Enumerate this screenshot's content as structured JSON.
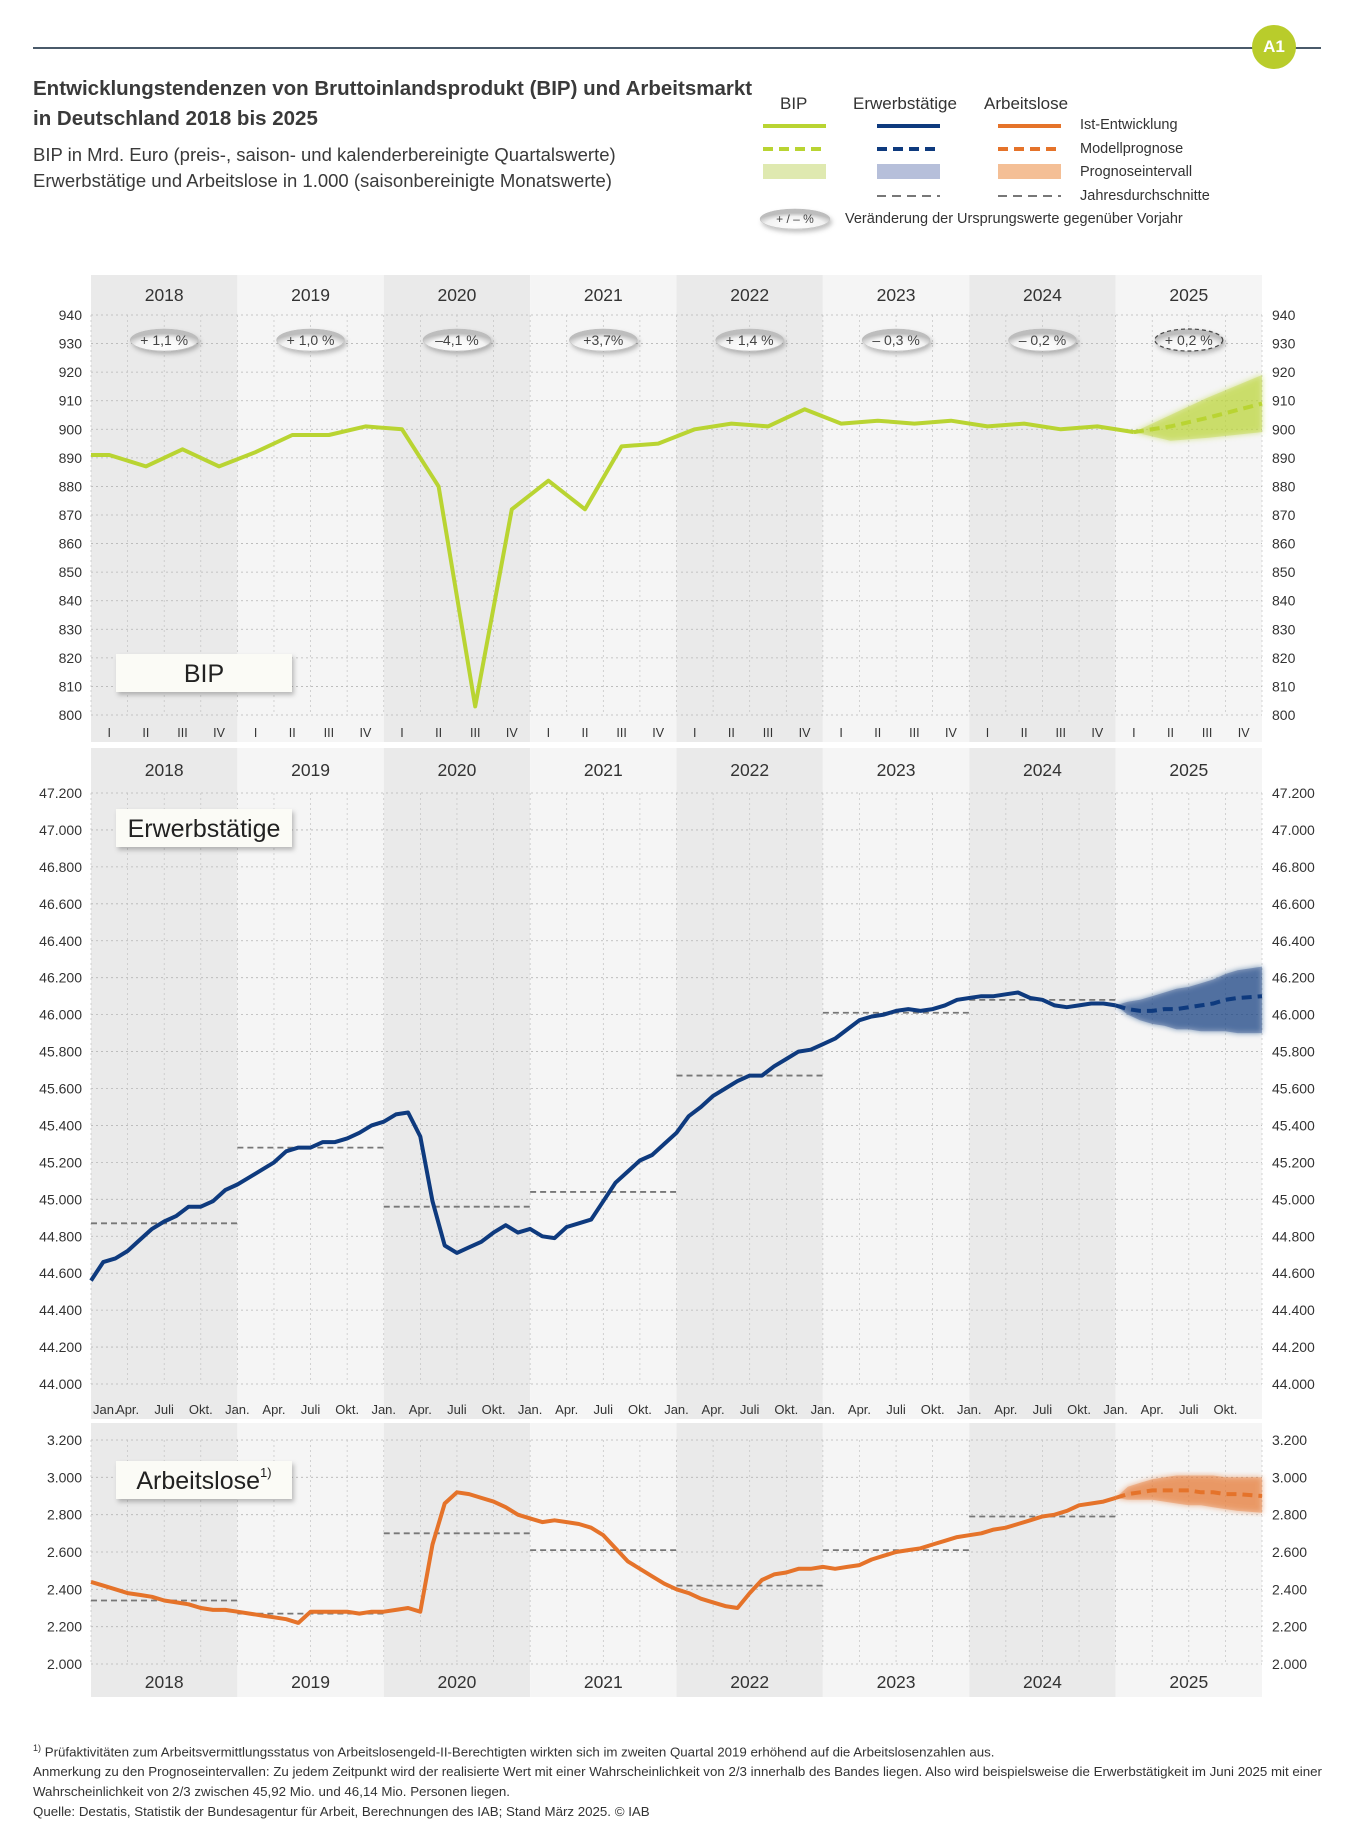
{
  "badge": "A1",
  "title": "Entwicklungstendenzen von Bruttoinlandsprodukt (BIP) und Arbeitsmarkt in Deutschland 2018 bis 2025",
  "subtitle_1": "BIP in Mrd. Euro (preis-, saison- und kalenderbereinigte Quartalswerte)",
  "subtitle_2": "Erwerbstätige und Arbeitslose in 1.000 (saisonbereinigte Monatswerte)",
  "legend": {
    "columns": [
      "BIP",
      "Erwerbstätige",
      "Arbeitslose"
    ],
    "rows": [
      "Ist-Entwicklung",
      "Modellprognose",
      "Prognoseintervall",
      "Jahresdurchschnitte"
    ],
    "change_symbol": "+ / – %",
    "change_text": "Veränderung der Ursprungswerte gegenüber Vorjahr"
  },
  "colors": {
    "bip": "#b9d432",
    "erw": "#0e3a7e",
    "alo": "#e5732a",
    "avg": "#777777",
    "band_dark": "#eaeaea",
    "band_light": "#f5f5f5"
  },
  "years": [
    "2018",
    "2019",
    "2020",
    "2021",
    "2022",
    "2023",
    "2024",
    "2025"
  ],
  "quarters": [
    "I",
    "II",
    "III",
    "IV"
  ],
  "months": [
    "Jan.",
    "Apr.",
    "Juli",
    "Okt."
  ],
  "chart_data": [
    {
      "type": "line",
      "label": "BIP",
      "unit": "Mrd. Euro",
      "ylim": [
        800,
        940
      ],
      "yticks": [
        800,
        810,
        820,
        830,
        840,
        850,
        860,
        870,
        880,
        890,
        900,
        910,
        920,
        930,
        940
      ],
      "yearly_change": [
        "+ 1,1 %",
        "+ 1,0 %",
        "–4,1 %",
        "+3,7%",
        "+ 1,4 %",
        "– 0,3 %",
        "– 0,2 %",
        "+ 0,2 %"
      ],
      "series": [
        {
          "name": "Ist-Entwicklung",
          "start": "2018-Q1",
          "values": [
            891,
            887,
            893,
            887,
            892,
            898,
            898,
            901,
            900,
            880,
            803,
            872,
            882,
            872,
            894,
            895,
            900,
            902,
            901,
            907,
            902,
            903,
            902,
            903,
            901,
            902,
            900,
            901,
            899
          ]
        },
        {
          "name": "Modellprognose",
          "start": "2025-Q1",
          "values": [
            899,
            901,
            904,
            909
          ]
        },
        {
          "name": "Prognoseintervall",
          "start": "2025-Q1",
          "lower": [
            899,
            896,
            897,
            899
          ],
          "upper": [
            899,
            905,
            911,
            919
          ]
        }
      ]
    },
    {
      "type": "line",
      "label": "Erwerbstätige",
      "unit": "1.000",
      "ylim": [
        44000,
        47200
      ],
      "yticks": [
        44000,
        44200,
        44400,
        44600,
        44800,
        45000,
        45200,
        45400,
        45600,
        45800,
        46000,
        46200,
        46400,
        46600,
        46800,
        47000,
        47200
      ],
      "annual_averages": [
        44870,
        45280,
        44960,
        45040,
        45670,
        46010,
        46080
      ],
      "series": [
        {
          "name": "Ist-Entwicklung",
          "start": "2018-01",
          "frequency": "monthly",
          "values": [
            44560,
            44660,
            44680,
            44720,
            44780,
            44840,
            44880,
            44910,
            44960,
            44960,
            44990,
            45050,
            45080,
            45120,
            45160,
            45200,
            45260,
            45280,
            45280,
            45310,
            45310,
            45330,
            45360,
            45400,
            45420,
            45460,
            45470,
            45340,
            44990,
            44750,
            44710,
            44740,
            44770,
            44820,
            44860,
            44820,
            44840,
            44800,
            44790,
            44850,
            44870,
            44890,
            44990,
            45090,
            45150,
            45210,
            45240,
            45300,
            45360,
            45450,
            45500,
            45560,
            45600,
            45640,
            45670,
            45670,
            45720,
            45760,
            45800,
            45810,
            45840,
            45870,
            45920,
            45970,
            45990,
            46000,
            46020,
            46030,
            46020,
            46030,
            46050,
            46080,
            46090,
            46100,
            46100,
            46110,
            46120,
            46090,
            46080,
            46050,
            46040,
            46050,
            46060,
            46060,
            46050
          ]
        },
        {
          "name": "Modellprognose",
          "start": "2025-01",
          "frequency": "monthly",
          "values": [
            46050,
            46030,
            46020,
            46020,
            46030,
            46030,
            46040,
            46050,
            46060,
            46080,
            46090,
            46100
          ]
        },
        {
          "name": "Prognoseintervall",
          "start": "2025-01",
          "frequency": "monthly",
          "lower": [
            46050,
            46000,
            45970,
            45950,
            45940,
            45920,
            45920,
            45910,
            45910,
            45910,
            45900,
            45900
          ],
          "upper": [
            46050,
            46070,
            46080,
            46100,
            46120,
            46140,
            46150,
            46170,
            46190,
            46220,
            46240,
            46260
          ]
        }
      ]
    },
    {
      "type": "line",
      "label": "Arbeitslose",
      "label_footnote": "1)",
      "unit": "1.000",
      "ylim": [
        2000,
        3200
      ],
      "yticks": [
        2000,
        2200,
        2400,
        2600,
        2800,
        3000,
        3200
      ],
      "annual_averages": [
        2340,
        2270,
        2700,
        2610,
        2420,
        2610,
        2790
      ],
      "series": [
        {
          "name": "Ist-Entwicklung",
          "start": "2018-01",
          "frequency": "monthly",
          "values": [
            2440,
            2420,
            2400,
            2380,
            2370,
            2360,
            2340,
            2330,
            2320,
            2300,
            2290,
            2290,
            2280,
            2270,
            2260,
            2250,
            2240,
            2220,
            2280,
            2280,
            2280,
            2280,
            2270,
            2280,
            2280,
            2290,
            2300,
            2280,
            2640,
            2860,
            2920,
            2910,
            2890,
            2870,
            2840,
            2800,
            2780,
            2760,
            2770,
            2760,
            2750,
            2730,
            2690,
            2620,
            2550,
            2510,
            2470,
            2430,
            2400,
            2380,
            2350,
            2330,
            2310,
            2300,
            2380,
            2450,
            2480,
            2490,
            2510,
            2510,
            2520,
            2510,
            2520,
            2530,
            2560,
            2580,
            2600,
            2610,
            2620,
            2640,
            2660,
            2680,
            2690,
            2700,
            2720,
            2730,
            2750,
            2770,
            2790,
            2800,
            2820,
            2850,
            2860,
            2870,
            2890
          ]
        },
        {
          "name": "Modellprognose",
          "start": "2025-01",
          "frequency": "monthly",
          "values": [
            2890,
            2910,
            2920,
            2930,
            2930,
            2930,
            2930,
            2920,
            2920,
            2910,
            2910,
            2900
          ]
        },
        {
          "name": "Prognoseintervall",
          "start": "2025-01",
          "frequency": "monthly",
          "lower": [
            2890,
            2880,
            2880,
            2880,
            2870,
            2860,
            2850,
            2850,
            2840,
            2830,
            2820,
            2810
          ],
          "upper": [
            2890,
            2950,
            2970,
            2990,
            3000,
            3010,
            3010,
            3010,
            3010,
            3000,
            3000,
            3000
          ]
        }
      ]
    }
  ],
  "footnotes": {
    "note1": "Prüfaktivitäten zum Arbeitsvermittlungsstatus von Arbeitslosengeld-II-Berechtigten wirkten sich im zweiten Quartal 2019 erhöhend auf die Arbeitslosenzahlen aus.",
    "note1_marker": "1)",
    "note2": "Anmerkung zu den Prognoseintervallen: Zu jedem Zeitpunkt wird der realisierte Wert mit einer Wahrscheinlichkeit von 2/3 innerhalb des Bandes liegen. Also wird beispielsweise die Erwerbstätigkeit im Juni 2025 mit einer Wahrscheinlichkeit von 2/3 zwischen 45,92 Mio. und 46,14 Mio. Personen liegen.",
    "source": "Quelle: Destatis, Statistik der Bundesagentur für Arbeit, Berechnungen des IAB; Stand März 2025.  © IAB"
  }
}
